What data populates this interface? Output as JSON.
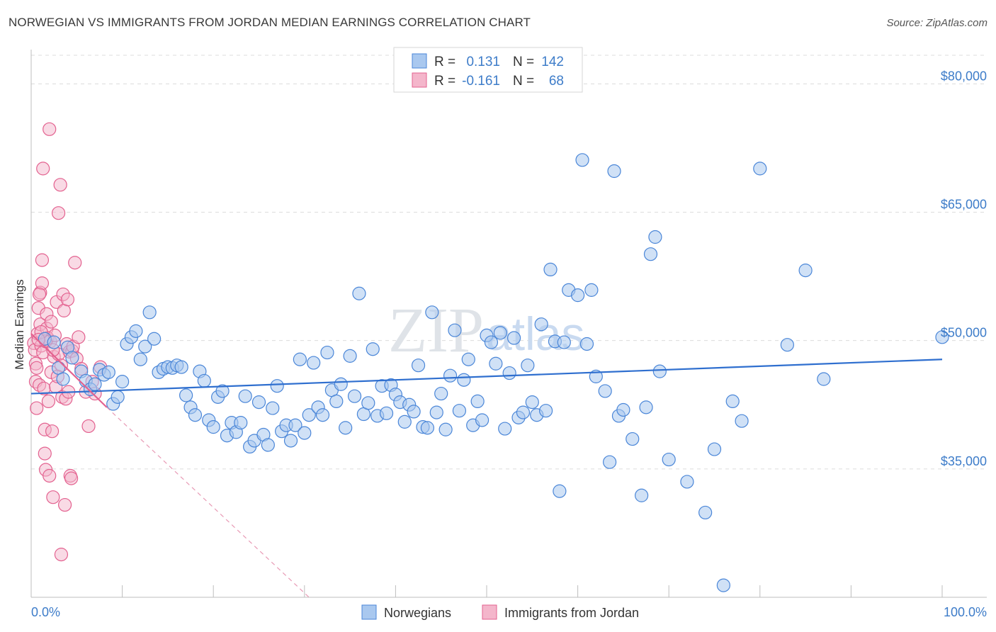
{
  "header": {
    "title": "NORWEGIAN VS IMMIGRANTS FROM JORDAN MEDIAN EARNINGS CORRELATION CHART",
    "source": "Source: ZipAtlas.com"
  },
  "watermark": {
    "part1": "ZIP",
    "part2": "atlas"
  },
  "colors": {
    "blue": "#4a86d8",
    "blue_fill": "#a9c8ef",
    "pink": "#e3618f",
    "pink_fill": "#f4b6cb",
    "grid": "#dcdcdc",
    "accent_text": "#3d7cc9"
  },
  "legend": {
    "rows": [
      {
        "r_label": "R =",
        "r_value": "0.131",
        "n_label": "N =",
        "n_value": "142"
      },
      {
        "r_label": "R =",
        "r_value": "-0.161",
        "n_label": "N =",
        "n_value": "68"
      }
    ]
  },
  "bottom_legend": {
    "items": [
      "Norwegians",
      "Immigrants from Jordan"
    ]
  },
  "chart_data": {
    "type": "scatter",
    "title": "NORWEGIAN VS IMMIGRANTS FROM JORDAN MEDIAN EARNINGS CORRELATION CHART",
    "xlabel": "",
    "ylabel": "Median Earnings",
    "xlim": [
      0,
      100
    ],
    "ylim": [
      20000,
      84000
    ],
    "x_tick_labels": [
      "0.0%",
      "100.0%"
    ],
    "y_ticks": [
      35000,
      50000,
      65000,
      80000
    ],
    "y_tick_labels": [
      "$35,000",
      "$50,000",
      "$65,000",
      "$80,000"
    ],
    "grid": true,
    "series": [
      {
        "name": "Norwegians",
        "R": 0.131,
        "N": 142,
        "trend": [
          [
            0,
            43800
          ],
          [
            100,
            47800
          ]
        ],
        "points": [
          [
            1.5,
            50200
          ],
          [
            2.5,
            49800
          ],
          [
            3.0,
            46800
          ],
          [
            3.5,
            45500
          ],
          [
            4.0,
            49200
          ],
          [
            4.5,
            48000
          ],
          [
            5.5,
            46400
          ],
          [
            6.0,
            45300
          ],
          [
            6.5,
            44300
          ],
          [
            7.0,
            44900
          ],
          [
            7.5,
            46600
          ],
          [
            8.0,
            46000
          ],
          [
            8.5,
            46300
          ],
          [
            9.0,
            42600
          ],
          [
            9.5,
            43400
          ],
          [
            10.0,
            45200
          ],
          [
            10.5,
            49600
          ],
          [
            11.0,
            50400
          ],
          [
            11.5,
            51100
          ],
          [
            12.0,
            47800
          ],
          [
            12.5,
            49300
          ],
          [
            13.0,
            53300
          ],
          [
            13.5,
            50200
          ],
          [
            14.0,
            46300
          ],
          [
            14.5,
            46700
          ],
          [
            15.0,
            46900
          ],
          [
            15.5,
            46800
          ],
          [
            16.0,
            47100
          ],
          [
            16.5,
            46900
          ],
          [
            17.0,
            43600
          ],
          [
            17.5,
            42200
          ],
          [
            18.0,
            41300
          ],
          [
            18.5,
            46400
          ],
          [
            19.0,
            45300
          ],
          [
            19.5,
            40700
          ],
          [
            20.0,
            39900
          ],
          [
            20.5,
            43400
          ],
          [
            21.0,
            44100
          ],
          [
            21.5,
            38900
          ],
          [
            22.0,
            40400
          ],
          [
            22.5,
            39300
          ],
          [
            23.0,
            40400
          ],
          [
            23.5,
            43500
          ],
          [
            24.0,
            37600
          ],
          [
            24.5,
            38300
          ],
          [
            25.0,
            42800
          ],
          [
            25.5,
            39000
          ],
          [
            26.0,
            37800
          ],
          [
            26.5,
            42100
          ],
          [
            27.0,
            44700
          ],
          [
            27.5,
            39400
          ],
          [
            28.0,
            40100
          ],
          [
            28.5,
            38300
          ],
          [
            29.0,
            40100
          ],
          [
            29.5,
            47800
          ],
          [
            30.0,
            39200
          ],
          [
            30.5,
            41300
          ],
          [
            31.0,
            47400
          ],
          [
            31.5,
            42200
          ],
          [
            32.0,
            41300
          ],
          [
            32.5,
            48600
          ],
          [
            33.0,
            44200
          ],
          [
            33.5,
            42900
          ],
          [
            34.0,
            44900
          ],
          [
            34.5,
            39800
          ],
          [
            35.0,
            48200
          ],
          [
            35.5,
            43500
          ],
          [
            36.0,
            55500
          ],
          [
            36.5,
            41400
          ],
          [
            37.0,
            42700
          ],
          [
            37.5,
            49000
          ],
          [
            38.0,
            41200
          ],
          [
            38.5,
            44700
          ],
          [
            39.0,
            41500
          ],
          [
            39.5,
            44800
          ],
          [
            40.0,
            43700
          ],
          [
            40.5,
            42800
          ],
          [
            41.0,
            40500
          ],
          [
            41.5,
            42500
          ],
          [
            42.0,
            41700
          ],
          [
            42.5,
            47100
          ],
          [
            43.0,
            39900
          ],
          [
            43.5,
            39800
          ],
          [
            44.0,
            53300
          ],
          [
            44.5,
            41600
          ],
          [
            45.0,
            43800
          ],
          [
            45.5,
            39600
          ],
          [
            46.0,
            45900
          ],
          [
            46.5,
            51200
          ],
          [
            47.0,
            41800
          ],
          [
            47.5,
            45400
          ],
          [
            48.0,
            47800
          ],
          [
            48.5,
            40100
          ],
          [
            49.0,
            42900
          ],
          [
            49.5,
            40700
          ],
          [
            50.0,
            50600
          ],
          [
            50.5,
            49800
          ],
          [
            51.0,
            47300
          ],
          [
            51.5,
            50900
          ],
          [
            52.0,
            39700
          ],
          [
            52.5,
            46200
          ],
          [
            53.0,
            50300
          ],
          [
            53.5,
            41000
          ],
          [
            54.0,
            41600
          ],
          [
            54.5,
            47100
          ],
          [
            55.0,
            42800
          ],
          [
            55.5,
            41300
          ],
          [
            56.0,
            51900
          ],
          [
            56.5,
            41800
          ],
          [
            57.0,
            58300
          ],
          [
            57.5,
            49900
          ],
          [
            58.0,
            32400
          ],
          [
            58.5,
            49800
          ],
          [
            59.0,
            55900
          ],
          [
            60.0,
            55300
          ],
          [
            60.5,
            71100
          ],
          [
            61.0,
            49600
          ],
          [
            61.5,
            55900
          ],
          [
            62.0,
            45800
          ],
          [
            63.0,
            44100
          ],
          [
            63.5,
            35800
          ],
          [
            64.0,
            69800
          ],
          [
            64.5,
            41200
          ],
          [
            65.0,
            41900
          ],
          [
            66.0,
            38500
          ],
          [
            67.0,
            31900
          ],
          [
            67.5,
            42200
          ],
          [
            68.0,
            60100
          ],
          [
            68.5,
            62100
          ],
          [
            69.0,
            46400
          ],
          [
            70.0,
            36100
          ],
          [
            72.0,
            33500
          ],
          [
            74.0,
            29900
          ],
          [
            75.0,
            37300
          ],
          [
            76.0,
            21400
          ],
          [
            77.0,
            42900
          ],
          [
            78.0,
            40600
          ],
          [
            80.0,
            70100
          ],
          [
            83.0,
            49500
          ],
          [
            85.0,
            58200
          ],
          [
            87.0,
            45500
          ],
          [
            100.0,
            50400
          ]
        ]
      },
      {
        "name": "Immigrants from Jordan",
        "R": -0.161,
        "N": 68,
        "trend": [
          [
            0,
            50800
          ],
          [
            8.3,
            42200
          ]
        ],
        "trend_extension": [
          [
            8.3,
            42200
          ],
          [
            30.5,
            20000
          ]
        ],
        "points": [
          [
            0.3,
            49700
          ],
          [
            0.4,
            48900
          ],
          [
            0.5,
            47300
          ],
          [
            0.5,
            45200
          ],
          [
            0.6,
            42100
          ],
          [
            0.7,
            50800
          ],
          [
            0.8,
            53800
          ],
          [
            0.9,
            44800
          ],
          [
            1.0,
            51900
          ],
          [
            1.0,
            55600
          ],
          [
            1.1,
            49400
          ],
          [
            1.2,
            56700
          ],
          [
            1.2,
            59400
          ],
          [
            1.3,
            70100
          ],
          [
            1.3,
            48600
          ],
          [
            1.4,
            44400
          ],
          [
            1.5,
            39600
          ],
          [
            1.5,
            36800
          ],
          [
            1.6,
            34900
          ],
          [
            1.7,
            51400
          ],
          [
            1.7,
            53100
          ],
          [
            1.8,
            50300
          ],
          [
            1.9,
            42900
          ],
          [
            2.0,
            34200
          ],
          [
            2.0,
            74700
          ],
          [
            2.1,
            49900
          ],
          [
            2.2,
            46300
          ],
          [
            2.3,
            39400
          ],
          [
            2.4,
            31700
          ],
          [
            2.5,
            48100
          ],
          [
            2.6,
            50600
          ],
          [
            2.7,
            44600
          ],
          [
            2.8,
            54500
          ],
          [
            3.0,
            64900
          ],
          [
            3.0,
            48400
          ],
          [
            3.2,
            68200
          ],
          [
            3.3,
            47100
          ],
          [
            3.4,
            43400
          ],
          [
            3.5,
            55400
          ],
          [
            3.6,
            53500
          ],
          [
            3.7,
            30800
          ],
          [
            3.8,
            43200
          ],
          [
            3.9,
            49600
          ],
          [
            4.0,
            54800
          ],
          [
            4.1,
            44000
          ],
          [
            4.2,
            48700
          ],
          [
            4.3,
            34200
          ],
          [
            4.4,
            33900
          ],
          [
            4.5,
            48800
          ],
          [
            4.6,
            49300
          ],
          [
            4.8,
            59100
          ],
          [
            5.0,
            47900
          ],
          [
            5.2,
            50400
          ],
          [
            5.5,
            46700
          ],
          [
            6.0,
            44000
          ],
          [
            6.3,
            40000
          ],
          [
            6.7,
            45200
          ],
          [
            7.0,
            43800
          ],
          [
            7.6,
            46900
          ],
          [
            0.9,
            55400
          ],
          [
            1.6,
            49900
          ],
          [
            0.6,
            46800
          ],
          [
            2.2,
            52200
          ],
          [
            2.9,
            45800
          ],
          [
            3.3,
            25000
          ],
          [
            1.1,
            51000
          ],
          [
            2.4,
            48900
          ],
          [
            0.8,
            50100
          ]
        ]
      }
    ]
  }
}
